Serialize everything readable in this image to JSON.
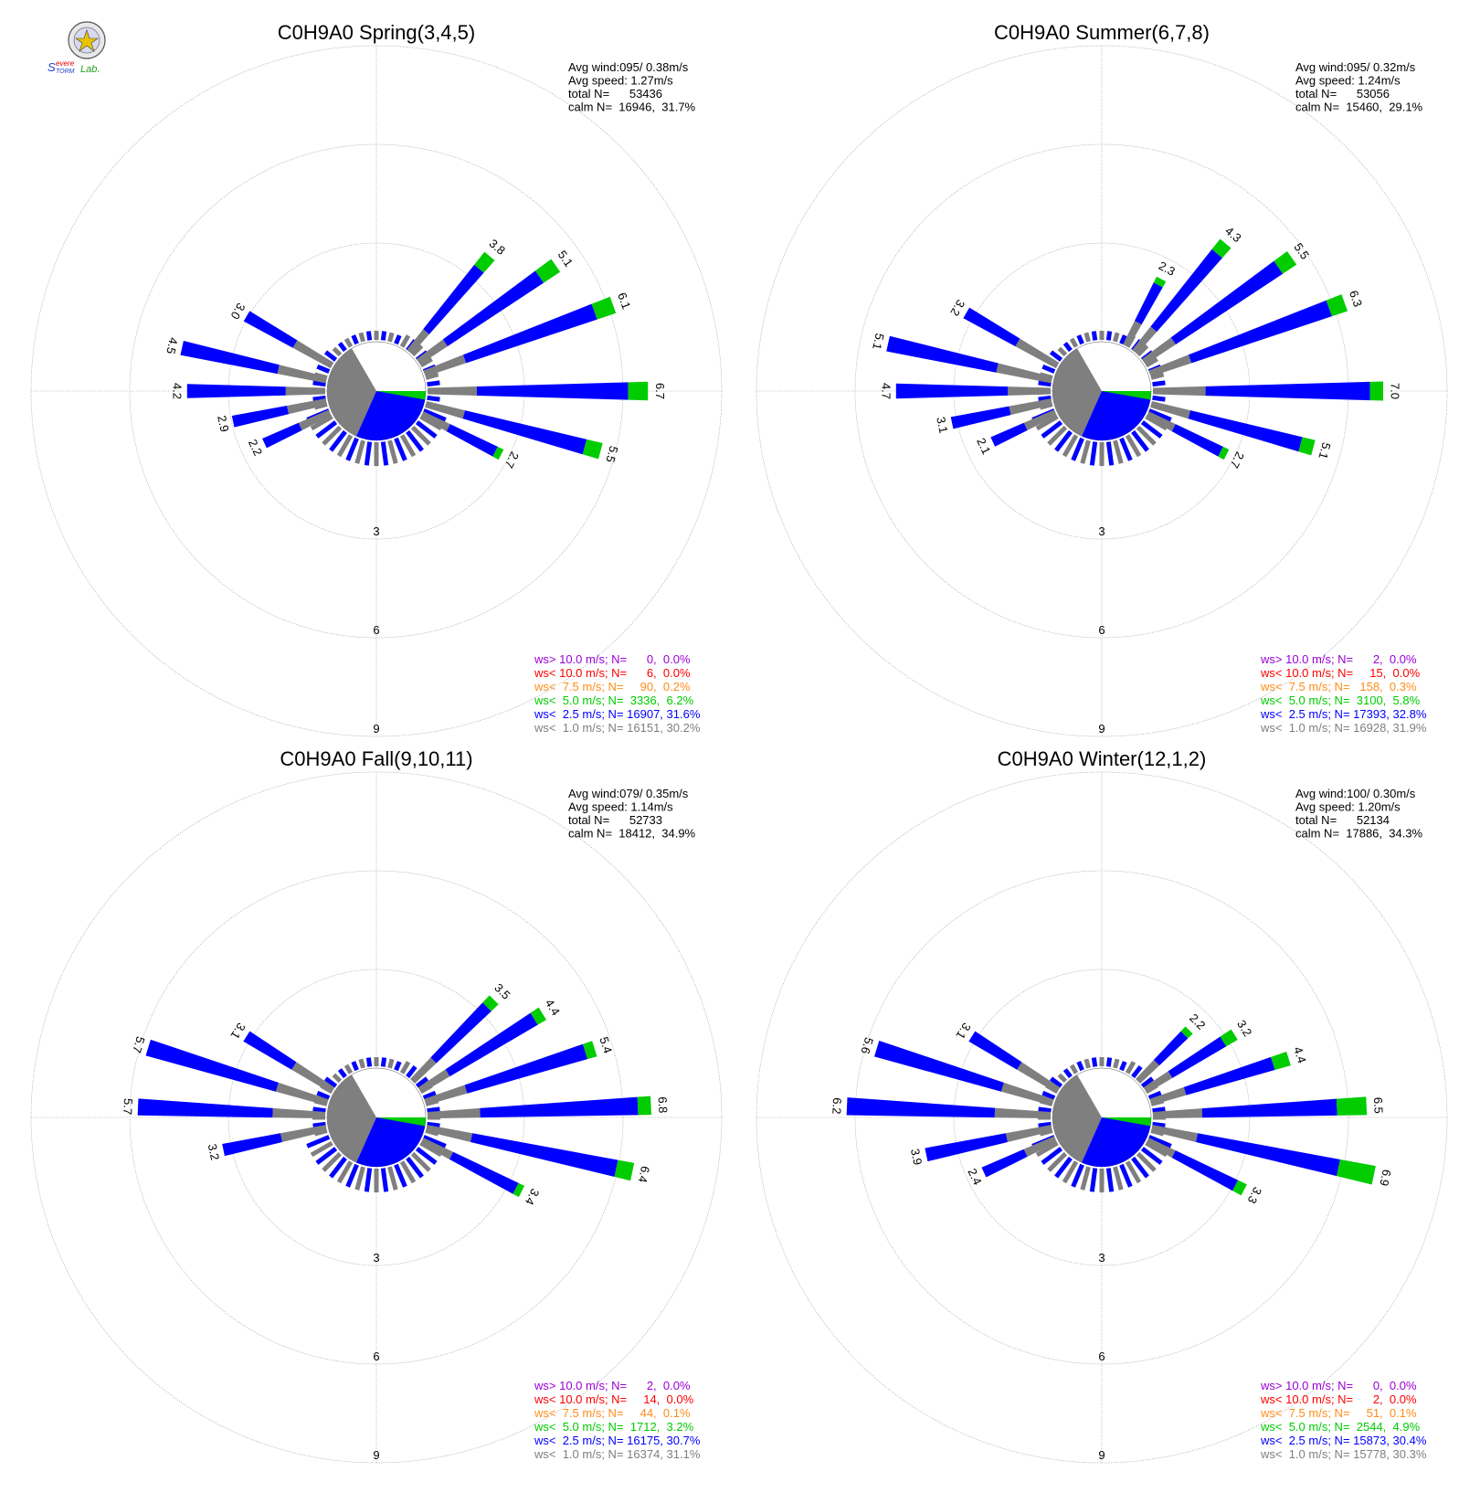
{
  "logo": {
    "text_top": "Severe",
    "text_bottom": "Storm",
    "text_right": "Lab."
  },
  "colors": {
    "calm": "#7f7f7f",
    "ws_lt_2_5": "#0000ff",
    "ws_lt_5_0": "#00cc00",
    "ws_lt_7_5": "#ff8c1a",
    "ws_lt_10_0": "#ff0000",
    "ws_gt_10_0": "#9b00d6",
    "grid": "#888888"
  },
  "chart_data": [
    {
      "type": "wind-rose",
      "title": "C0H9A0 Spring(3,4,5)",
      "stats": [
        "Avg wind:095/ 0.38m/s",
        "Avg speed: 1.27m/s",
        "total N=      53436",
        "calm N=  16946,  31.7%"
      ],
      "ring_labels": [
        "3",
        "6",
        "9"
      ],
      "sector_totals": {
        "30": 3.0,
        "17.5": 4.5,
        "4": 4.2,
        "-12": 2.9,
        "-25": 2.2,
        "50": 3.8,
        "35": 5.1,
        "20": 6.1,
        "0": 6.7,
        "-15": 5.5,
        "-27": 2.7
      },
      "legend": [
        {
          "text": "ws> 10.0 m/s; N=      0,  0.0%",
          "color_key": "ws_gt_10_0"
        },
        {
          "text": "ws< 10.0 m/s; N=      6,  0.0%",
          "color_key": "ws_lt_10_0"
        },
        {
          "text": "ws<  7.5 m/s; N=     90,  0.2%",
          "color_key": "ws_lt_7_5"
        },
        {
          "text": "ws<  5.0 m/s; N=  3336,  6.2%",
          "color_key": "ws_lt_5_0"
        },
        {
          "text": "ws<  2.5 m/s; N= 16907, 31.6%",
          "color_key": "ws_lt_2_5"
        },
        {
          "text": "ws<  1.0 m/s; N= 16151, 30.2%",
          "color_key": "calm"
        }
      ],
      "spokes": [
        {
          "deg": 0,
          "gray": 1.5,
          "blue": 4.6,
          "green": 0.6,
          "label": "6.7"
        },
        {
          "deg": -15,
          "gray": 1.2,
          "blue": 3.8,
          "green": 0.5,
          "label": "5.5"
        },
        {
          "deg": -27,
          "gray": 0.9,
          "blue": 1.6,
          "green": 0.2,
          "label": "2.7"
        },
        {
          "deg": 20,
          "gray": 1.3,
          "blue": 4.2,
          "green": 0.6,
          "label": "6.1"
        },
        {
          "deg": 35,
          "gray": 1.0,
          "blue": 3.5,
          "green": 0.6,
          "label": "5.1"
        },
        {
          "deg": 50,
          "gray": 0.8,
          "blue": 2.5,
          "green": 0.5,
          "label": "3.8"
        },
        {
          "deg": 180,
          "gray": 1.2,
          "blue": 3.0,
          "green": 0.0,
          "label": "4.2"
        },
        {
          "deg": 167.5,
          "gray": 1.5,
          "blue": 3.0,
          "green": 0.0,
          "label": "4.5"
        },
        {
          "deg": 150,
          "gray": 1.3,
          "blue": 1.7,
          "green": 0.0,
          "label": "3.0"
        },
        {
          "deg": 192,
          "gray": 1.2,
          "blue": 1.7,
          "green": 0.0,
          "label": "2.9"
        },
        {
          "deg": 205,
          "gray": 1.0,
          "blue": 1.2,
          "green": 0.0,
          "label": "2.2"
        }
      ]
    },
    {
      "type": "wind-rose",
      "title": "C0H9A0 Summer(6,7,8)",
      "stats": [
        "Avg wind:095/ 0.32m/s",
        "Avg speed: 1.24m/s",
        "total N=      53056",
        "calm N=  15460,  29.1%"
      ],
      "ring_labels": [
        "3",
        "6",
        "9"
      ],
      "legend": [
        {
          "text": "ws> 10.0 m/s; N=      2,  0.0%",
          "color_key": "ws_gt_10_0"
        },
        {
          "text": "ws< 10.0 m/s; N=     15,  0.0%",
          "color_key": "ws_lt_10_0"
        },
        {
          "text": "ws<  7.5 m/s; N=   158,  0.3%",
          "color_key": "ws_lt_7_5"
        },
        {
          "text": "ws<  5.0 m/s; N=  3100,  5.8%",
          "color_key": "ws_lt_5_0"
        },
        {
          "text": "ws<  2.5 m/s; N= 17393, 32.8%",
          "color_key": "ws_lt_2_5"
        },
        {
          "text": "ws<  1.0 m/s; N= 16928, 31.9%",
          "color_key": "calm"
        }
      ],
      "spokes": [
        {
          "deg": 0,
          "gray": 1.6,
          "blue": 5.0,
          "green": 0.4,
          "label": "7.0"
        },
        {
          "deg": -15,
          "gray": 1.2,
          "blue": 3.5,
          "green": 0.4,
          "label": "5.1"
        },
        {
          "deg": -27,
          "gray": 0.9,
          "blue": 1.6,
          "green": 0.2,
          "label": "2.7"
        },
        {
          "deg": 20,
          "gray": 1.3,
          "blue": 4.5,
          "green": 0.5,
          "label": "6.3"
        },
        {
          "deg": 35,
          "gray": 1.1,
          "blue": 3.9,
          "green": 0.5,
          "label": "5.5"
        },
        {
          "deg": 50,
          "gray": 0.9,
          "blue": 3.0,
          "green": 0.4,
          "label": "4.3"
        },
        {
          "deg": 62,
          "gray": 0.8,
          "blue": 1.3,
          "green": 0.2,
          "label": "2.3"
        },
        {
          "deg": 180,
          "gray": 1.3,
          "blue": 3.4,
          "green": 0.0,
          "label": "4.7"
        },
        {
          "deg": 167.5,
          "gray": 1.7,
          "blue": 3.4,
          "green": 0.0,
          "label": "5.1"
        },
        {
          "deg": 150,
          "gray": 1.4,
          "blue": 1.8,
          "green": 0.0,
          "label": "3.2"
        },
        {
          "deg": 192,
          "gray": 1.3,
          "blue": 1.8,
          "green": 0.0,
          "label": "3.1"
        },
        {
          "deg": 205,
          "gray": 1.0,
          "blue": 1.1,
          "green": 0.0,
          "label": "2.1"
        }
      ]
    },
    {
      "type": "wind-rose",
      "title": "C0H9A0 Fall(9,10,11)",
      "stats": [
        "Avg wind:079/ 0.35m/s",
        "Avg speed: 1.14m/s",
        "total N=      52733",
        "calm N=  18412,  34.9%"
      ],
      "ring_labels": [
        "3",
        "6",
        "9"
      ],
      "legend": [
        {
          "text": "ws> 10.0 m/s; N=      2,  0.0%",
          "color_key": "ws_gt_10_0"
        },
        {
          "text": "ws< 10.0 m/s; N=     14,  0.0%",
          "color_key": "ws_lt_10_0"
        },
        {
          "text": "ws<  7.5 m/s; N=     44,  0.1%",
          "color_key": "ws_lt_7_5"
        },
        {
          "text": "ws<  5.0 m/s; N=  1712,  3.2%",
          "color_key": "ws_lt_5_0"
        },
        {
          "text": "ws<  2.5 m/s; N= 16175, 30.7%",
          "color_key": "ws_lt_2_5"
        },
        {
          "text": "ws<  1.0 m/s; N= 16374, 31.1%",
          "color_key": "calm"
        }
      ],
      "spokes": [
        {
          "deg": 2.5,
          "gray": 1.6,
          "blue": 4.8,
          "green": 0.4,
          "label": "6.8"
        },
        {
          "deg": -12,
          "gray": 1.4,
          "blue": 4.5,
          "green": 0.5,
          "label": "6.4"
        },
        {
          "deg": -27,
          "gray": 1.0,
          "blue": 2.2,
          "green": 0.2,
          "label": "3.4"
        },
        {
          "deg": 17.5,
          "gray": 1.3,
          "blue": 3.8,
          "green": 0.3,
          "label": "5.4"
        },
        {
          "deg": 32,
          "gray": 1.0,
          "blue": 3.1,
          "green": 0.3,
          "label": "4.4"
        },
        {
          "deg": 45,
          "gray": 0.9,
          "blue": 2.3,
          "green": 0.3,
          "label": "3.5"
        },
        {
          "deg": 177.5,
          "gray": 1.6,
          "blue": 4.1,
          "green": 0.0,
          "label": "5.7"
        },
        {
          "deg": 163,
          "gray": 1.6,
          "blue": 4.1,
          "green": 0.0,
          "label": "5.7"
        },
        {
          "deg": 148,
          "gray": 1.4,
          "blue": 1.7,
          "green": 0.0,
          "label": "3.1"
        },
        {
          "deg": 192,
          "gray": 1.4,
          "blue": 1.8,
          "green": 0.0,
          "label": "3.2"
        }
      ]
    },
    {
      "type": "wind-rose",
      "title": "C0H9A0 Winter(12,1,2)",
      "stats": [
        "Avg wind:100/ 0.30m/s",
        "Avg speed: 1.20m/s",
        "total N=      52134",
        "calm N=  17886,  34.3%"
      ],
      "ring_labels": [
        "3",
        "6",
        "9"
      ],
      "legend": [
        {
          "text": "ws> 10.0 m/s; N=      0,  0.0%",
          "color_key": "ws_gt_10_0"
        },
        {
          "text": "ws< 10.0 m/s; N=      2,  0.0%",
          "color_key": "ws_lt_10_0"
        },
        {
          "text": "ws<  7.5 m/s; N=     51,  0.1%",
          "color_key": "ws_lt_7_5"
        },
        {
          "text": "ws<  5.0 m/s; N=  2544,  4.9%",
          "color_key": "ws_lt_5_0"
        },
        {
          "text": "ws<  2.5 m/s; N= 15873, 30.4%",
          "color_key": "ws_lt_2_5"
        },
        {
          "text": "ws<  1.0 m/s; N= 15778, 30.3%",
          "color_key": "calm"
        }
      ],
      "spokes": [
        {
          "deg": 2.5,
          "gray": 1.5,
          "blue": 4.1,
          "green": 0.9,
          "label": "6.5"
        },
        {
          "deg": -12,
          "gray": 1.4,
          "blue": 4.4,
          "green": 1.1,
          "label": "6.9"
        },
        {
          "deg": -27,
          "gray": 0.9,
          "blue": 2.1,
          "green": 0.3,
          "label": "3.3"
        },
        {
          "deg": 17.5,
          "gray": 1.1,
          "blue": 2.8,
          "green": 0.5,
          "label": "4.4"
        },
        {
          "deg": 32,
          "gray": 0.9,
          "blue": 1.9,
          "green": 0.4,
          "label": "3.2"
        },
        {
          "deg": 45,
          "gray": 0.8,
          "blue": 1.2,
          "green": 0.2,
          "label": "2.2"
        },
        {
          "deg": 177.5,
          "gray": 1.7,
          "blue": 4.5,
          "green": 0.0,
          "label": "6.2"
        },
        {
          "deg": 163,
          "gray": 1.6,
          "blue": 4.0,
          "green": 0.0,
          "label": "5.6"
        },
        {
          "deg": 148,
          "gray": 1.4,
          "blue": 1.7,
          "green": 0.0,
          "label": "3.1"
        },
        {
          "deg": 192,
          "gray": 1.4,
          "blue": 2.5,
          "green": 0.0,
          "label": "3.9"
        },
        {
          "deg": 205,
          "gray": 1.0,
          "blue": 1.4,
          "green": 0.0,
          "label": "2.4"
        }
      ]
    }
  ]
}
